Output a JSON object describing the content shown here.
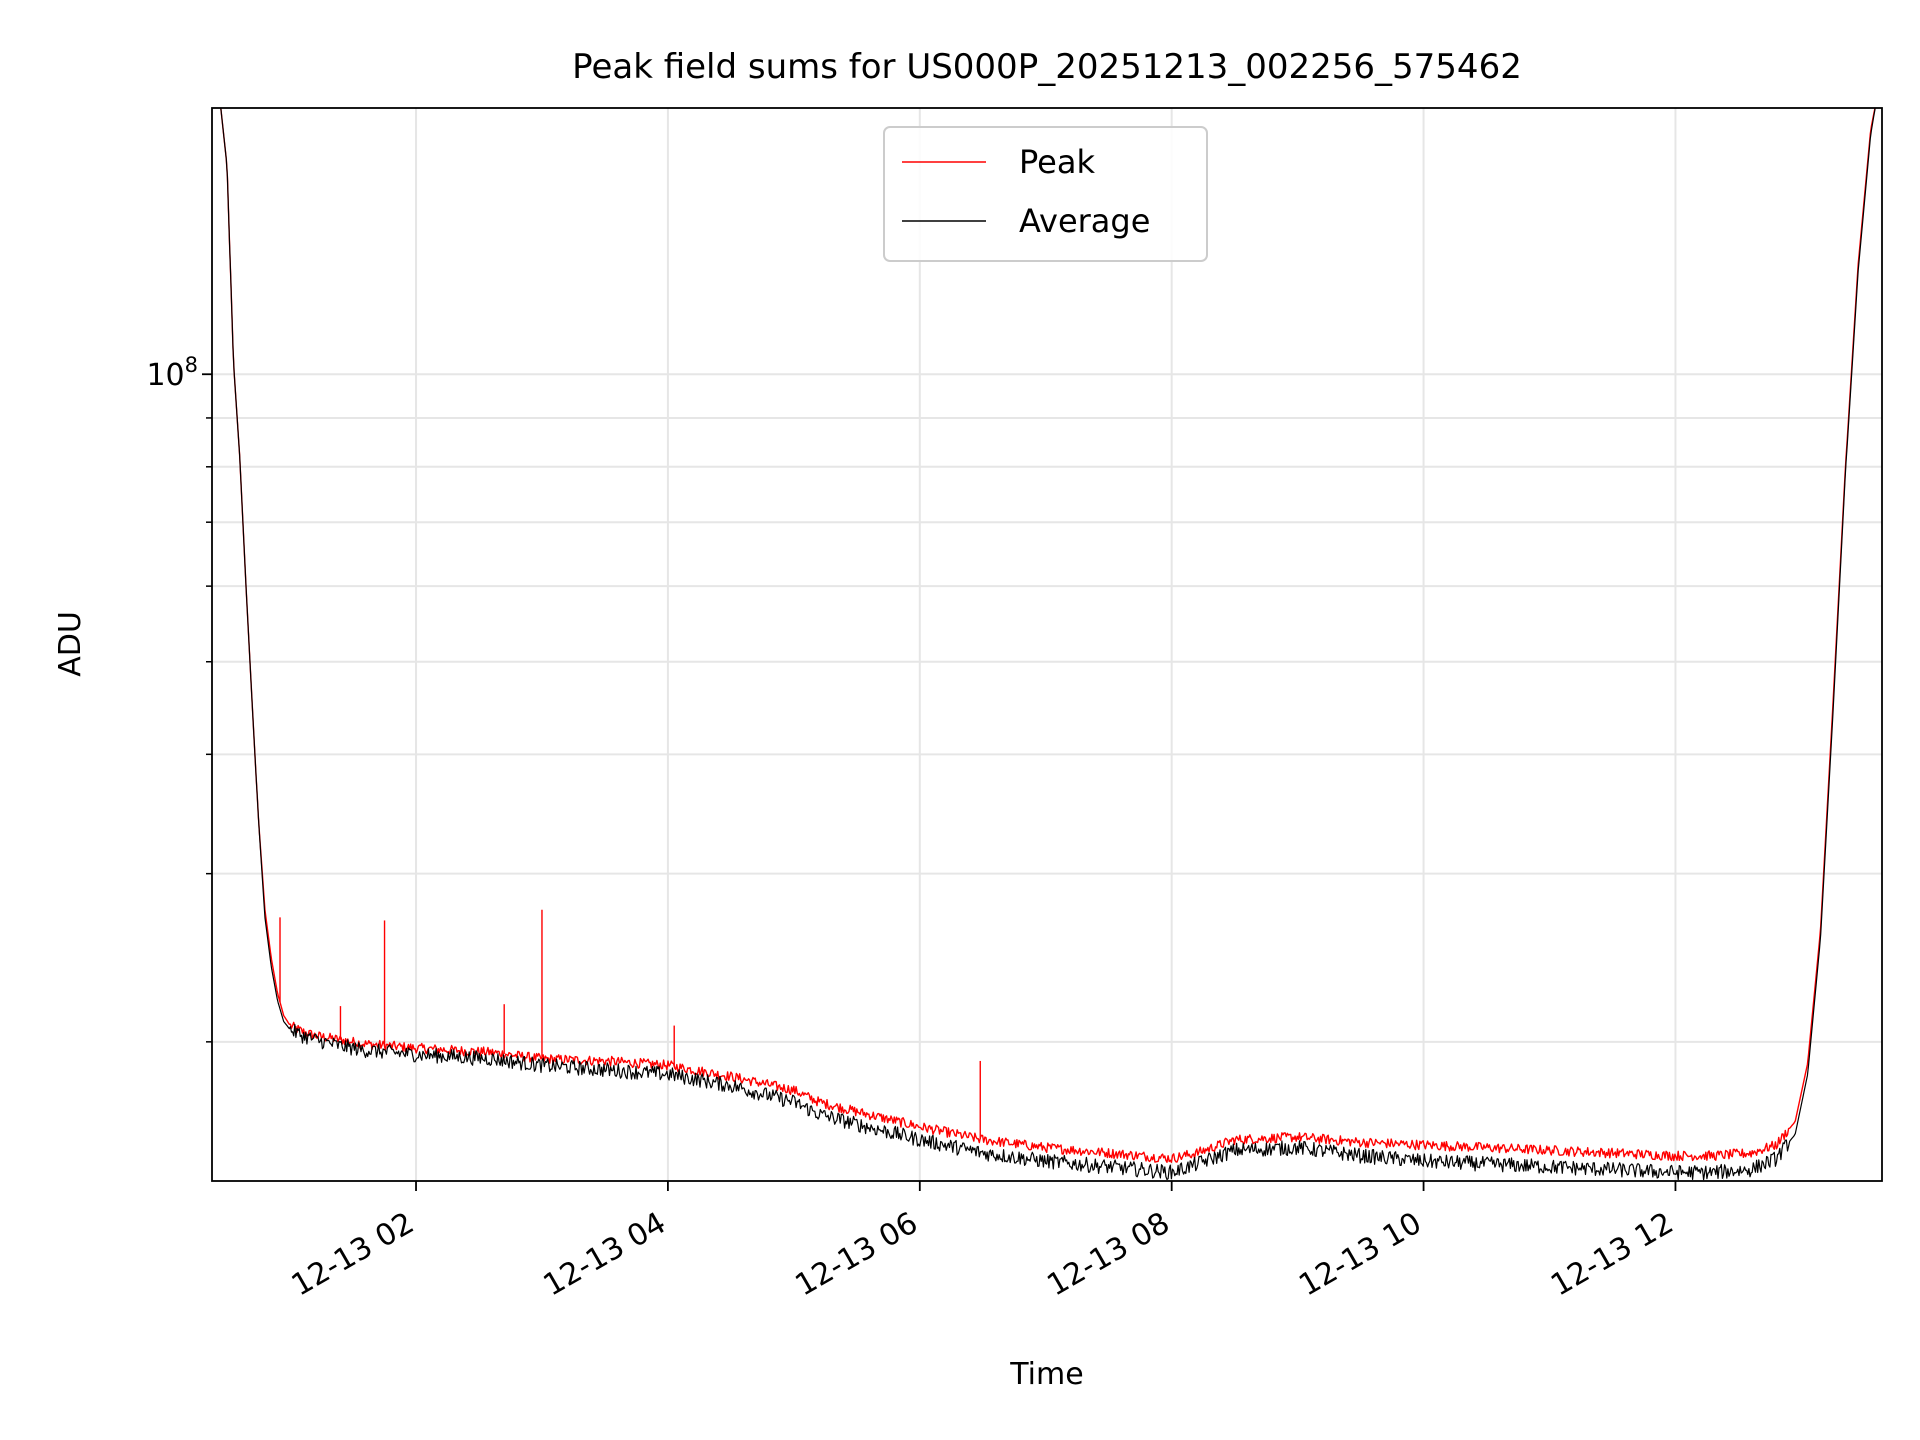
{
  "chart_data": {
    "type": "line",
    "title": "Peak field sums for US000P_20251213_002256_575462",
    "xlabel": "Time",
    "ylabel": "ADU",
    "y_scale": "log",
    "y_major_label": {
      "base": "10",
      "exp": "8"
    },
    "y_major_value": 100000000,
    "ylim": [
      14300000,
      190000000
    ],
    "y_minor_ticks": [
      20000000,
      30000000,
      40000000,
      50000000,
      60000000,
      70000000,
      80000000,
      90000000
    ],
    "xlim_hours": [
      0.38,
      13.64
    ],
    "x_ticks": [
      {
        "hour": 2,
        "label": "12-13 02"
      },
      {
        "hour": 4,
        "label": "12-13 04"
      },
      {
        "hour": 6,
        "label": "12-13 06"
      },
      {
        "hour": 8,
        "label": "12-13 08"
      },
      {
        "hour": 10,
        "label": "12-13 10"
      },
      {
        "hour": 12,
        "label": "12-13 12"
      }
    ],
    "grid": true,
    "legend": {
      "position": "upper-center",
      "entries": [
        "Peak",
        "Average"
      ]
    },
    "series": [
      {
        "name": "Peak",
        "color": "#ff0000",
        "x_hours": [
          0.45,
          0.5,
          0.55,
          0.6,
          0.65,
          0.7,
          0.75,
          0.8,
          0.85,
          0.9,
          0.95,
          1.0,
          1.1,
          1.2,
          1.4,
          1.6,
          1.8,
          2.0,
          2.3,
          2.6,
          3.0,
          3.5,
          4.0,
          4.5,
          5.0,
          5.2,
          5.5,
          6.0,
          6.5,
          7.0,
          7.5,
          8.0,
          8.2,
          8.5,
          9.0,
          9.5,
          10.0,
          10.5,
          11.0,
          11.5,
          12.0,
          12.3,
          12.6,
          12.8,
          12.95,
          13.05,
          13.15,
          13.25,
          13.35,
          13.45,
          13.55,
          13.6
        ],
        "values": [
          190000000,
          165000000,
          103000000,
          82000000,
          60000000,
          45000000,
          34000000,
          27500000,
          24500000,
          22500000,
          21300000,
          20800000,
          20500000,
          20300000,
          20100000,
          19900000,
          19800000,
          19700000,
          19600000,
          19500000,
          19200000,
          19100000,
          18900000,
          18400000,
          17800000,
          17300000,
          16900000,
          16300000,
          15800000,
          15500000,
          15300000,
          15100000,
          15300000,
          15800000,
          15900000,
          15700000,
          15600000,
          15500000,
          15400000,
          15300000,
          15200000,
          15200000,
          15300000,
          15600000,
          16500000,
          19000000,
          26000000,
          45000000,
          80000000,
          130000000,
          180000000,
          195000000
        ],
        "spikes": [
          {
            "hour": 0.92,
            "value": 27000000
          },
          {
            "hour": 1.4,
            "value": 21800000
          },
          {
            "hour": 1.75,
            "value": 26800000
          },
          {
            "hour": 2.7,
            "value": 21900000
          },
          {
            "hour": 3.0,
            "value": 27500000
          },
          {
            "hour": 4.05,
            "value": 20800000
          },
          {
            "hour": 6.48,
            "value": 19100000
          }
        ]
      },
      {
        "name": "Average",
        "color": "#000000",
        "x_hours": [
          0.45,
          0.5,
          0.55,
          0.6,
          0.65,
          0.7,
          0.75,
          0.8,
          0.85,
          0.9,
          0.95,
          1.0,
          1.1,
          1.2,
          1.4,
          1.6,
          1.8,
          2.0,
          2.3,
          2.6,
          3.0,
          3.5,
          4.0,
          4.5,
          5.0,
          5.2,
          5.5,
          6.0,
          6.5,
          7.0,
          7.5,
          8.0,
          8.2,
          8.5,
          9.0,
          9.5,
          10.0,
          10.5,
          11.0,
          11.5,
          12.0,
          12.3,
          12.6,
          12.8,
          12.95,
          13.05,
          13.15,
          13.25,
          13.35,
          13.45,
          13.55,
          13.6
        ],
        "values": [
          190000000,
          165000000,
          103000000,
          82000000,
          60000000,
          45000000,
          34000000,
          27000000,
          24000000,
          22100000,
          21000000,
          20600000,
          20300000,
          20100000,
          19800000,
          19600000,
          19500000,
          19400000,
          19300000,
          19200000,
          18900000,
          18700000,
          18500000,
          18000000,
          17300000,
          16800000,
          16400000,
          15800000,
          15300000,
          15000000,
          14800000,
          14600000,
          14900000,
          15400000,
          15500000,
          15200000,
          15000000,
          14900000,
          14800000,
          14700000,
          14600000,
          14600000,
          14700000,
          15100000,
          16000000,
          18500000,
          25500000,
          44000000,
          79000000,
          128000000,
          178000000,
          195000000
        ]
      }
    ]
  }
}
